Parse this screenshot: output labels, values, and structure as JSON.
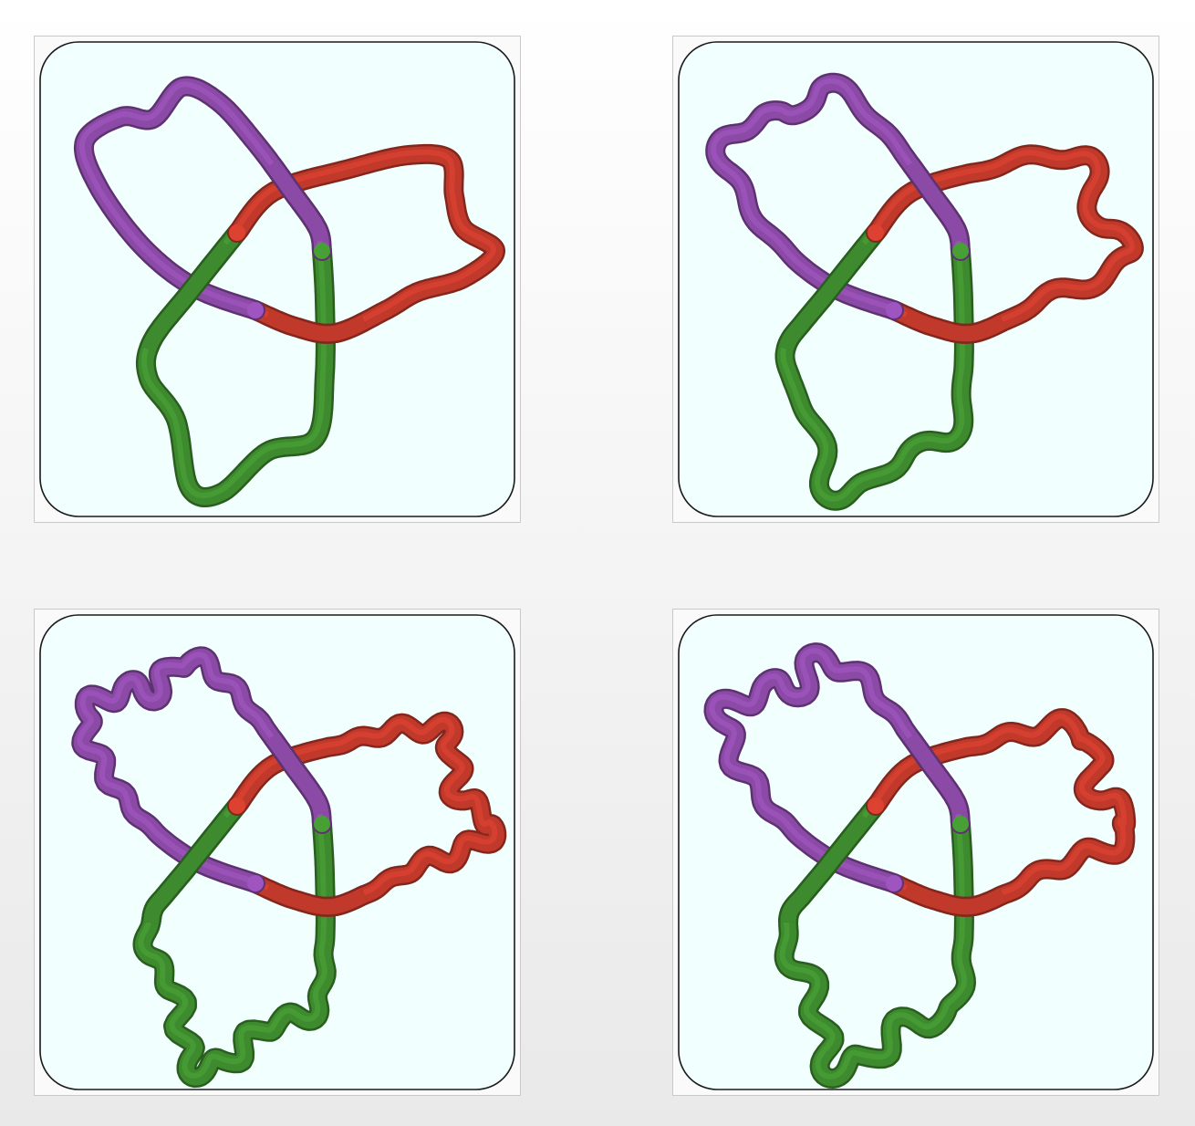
{
  "figure": {
    "panels": [
      {
        "id": "p1",
        "wiggles": 0,
        "amplitude": 0
      },
      {
        "id": "p2",
        "wiggles": 5,
        "amplitude": 9
      },
      {
        "id": "p3",
        "wiggles": 9,
        "amplitude": 11
      },
      {
        "id": "p4",
        "wiggles": 7,
        "amplitude": 14
      }
    ],
    "colors": {
      "background": "#f2ffff",
      "frame": "#1a1a1a",
      "segment_purple": "#8a4aa6",
      "segment_red": "#c0392b",
      "segment_green": "#3e8a2e"
    }
  }
}
